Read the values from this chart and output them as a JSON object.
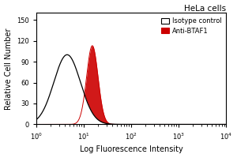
{
  "title": "HeLa cells",
  "xlabel": "Log Fluorescence Intensity",
  "ylabel": "Relative Cell Number",
  "xlim_log": [
    1,
    10000
  ],
  "ylim": [
    0,
    160
  ],
  "yticks": [
    0,
    30,
    60,
    90,
    120,
    150
  ],
  "isotype_peak_log": 0.65,
  "isotype_peak_y": 100,
  "isotype_std_log": 0.28,
  "anti_peak_log": 1.18,
  "anti_peak_y": 113,
  "anti_std_log": 0.12,
  "isotype_color": "black",
  "isotype_fill": "white",
  "anti_color": "#cc0000",
  "anti_fill": "#cc0000",
  "legend_entries": [
    "Isotype control",
    "Anti-BTAF1"
  ],
  "background_color": "white"
}
